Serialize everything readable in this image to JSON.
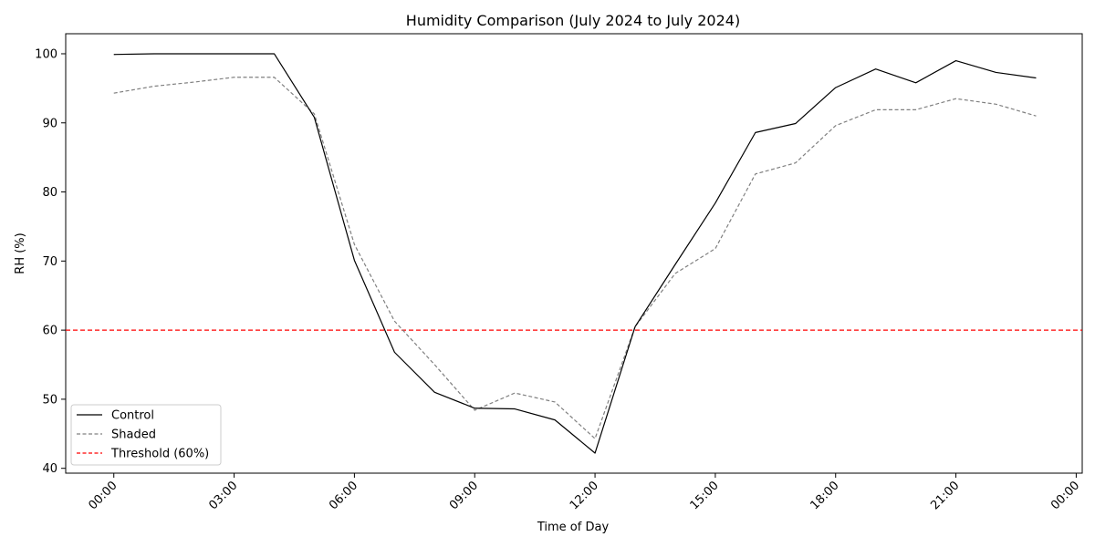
{
  "chart_data": {
    "type": "line",
    "title": "Humidity Comparison (July 2024 to July 2024)",
    "xlabel": "Time of Day",
    "ylabel": "RH (%)",
    "x": [
      "00:00",
      "01:00",
      "02:00",
      "03:00",
      "04:00",
      "05:00",
      "06:00",
      "07:00",
      "08:00",
      "09:00",
      "10:00",
      "11:00",
      "12:00",
      "13:00",
      "14:00",
      "15:00",
      "16:00",
      "17:00",
      "18:00",
      "19:00",
      "20:00",
      "21:00",
      "22:00",
      "23:00"
    ],
    "xticks": [
      "00:00",
      "03:00",
      "06:00",
      "09:00",
      "12:00",
      "15:00",
      "18:00",
      "21:00",
      "00:00"
    ],
    "yticks": [
      40,
      50,
      60,
      70,
      80,
      90,
      100
    ],
    "ylim": [
      39.3,
      102.9
    ],
    "grid": false,
    "legend_position": "bottom-left",
    "series": [
      {
        "name": "Control",
        "color": "#000000",
        "style": "solid",
        "values": [
          99.9,
          100.0,
          100.0,
          100.0,
          100.0,
          90.8,
          70.1,
          56.8,
          51.0,
          48.7,
          48.6,
          47.0,
          42.2,
          60.5,
          69.5,
          78.4,
          88.6,
          89.9,
          95.1,
          97.8,
          95.8,
          99.0,
          97.3,
          96.5
        ]
      },
      {
        "name": "Shaded",
        "color": "#808080",
        "style": "dashed",
        "values": [
          94.3,
          95.3,
          95.9,
          96.6,
          96.6,
          91.3,
          72.4,
          61.3,
          55.0,
          48.4,
          50.9,
          49.6,
          44.3,
          60.5,
          68.2,
          71.8,
          82.6,
          84.2,
          89.6,
          91.9,
          91.9,
          93.5,
          92.7,
          91.0
        ]
      }
    ],
    "threshold": {
      "name": "Threshold (60%)",
      "value": 60,
      "color": "#ff0000",
      "style": "dashed"
    }
  }
}
